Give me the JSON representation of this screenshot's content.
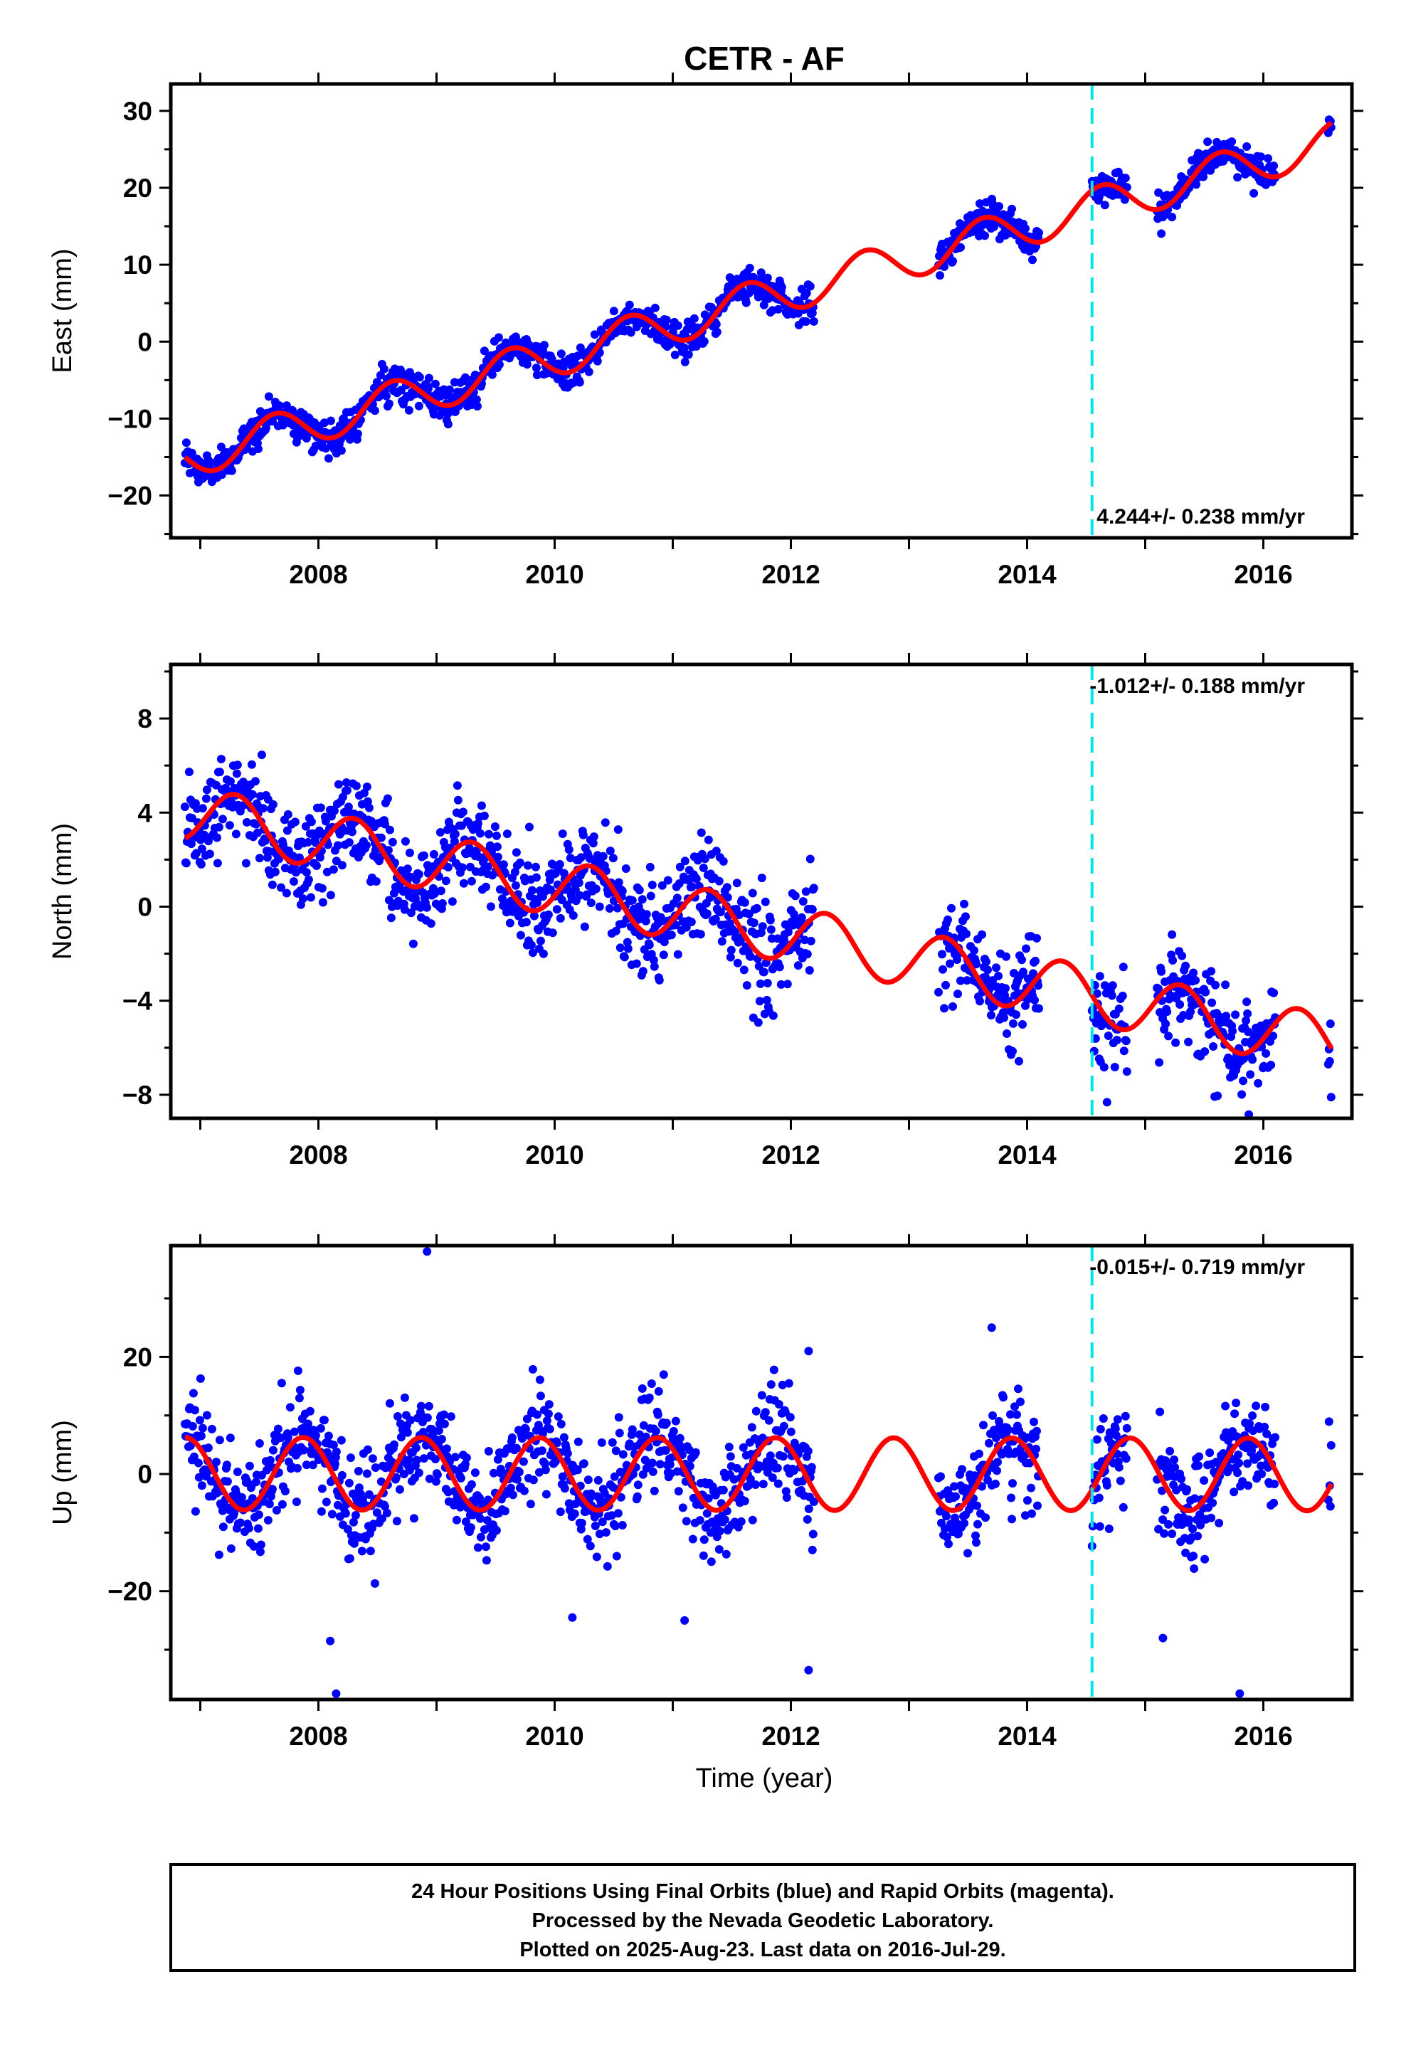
{
  "title": "CETR - AF",
  "xlabel": "Time (year)",
  "footer": {
    "line1": "24 Hour Positions Using Final Orbits (blue) and Rapid Orbits (magenta).",
    "line2": "Processed by the Nevada Geodetic Laboratory.",
    "line3": "Plotted on 2025-Aug-23. Last data on 2016-Jul-29."
  },
  "colors": {
    "points": "#0000ff",
    "model": "#ff0000",
    "marker": "#00e5e5",
    "frame": "#000000"
  },
  "chart_data": [
    {
      "type": "scatter",
      "ylabel": "East (mm)",
      "xlim": [
        2006.75,
        2016.75
      ],
      "ylim": [
        -25.5,
        33.5
      ],
      "xticks": [
        2008,
        2010,
        2012,
        2014,
        2016
      ],
      "yticks": [
        -20,
        -10,
        0,
        10,
        20,
        30
      ],
      "ytick_labels": [
        "−20",
        "−10",
        "0",
        "10",
        "20",
        "30"
      ],
      "rate_label": "4.244+/- 0.238 mm/yr",
      "rate_label_position": "bottom-right",
      "vertical_marker": 2014.55,
      "data_spans": [
        [
          2006.87,
          2012.2
        ],
        [
          2013.25,
          2014.1
        ],
        [
          2014.55,
          2014.85
        ],
        [
          2015.1,
          2016.1
        ],
        [
          2016.55,
          2016.58
        ]
      ],
      "model": {
        "intercept": 5.3,
        "rate": 4.244,
        "ref_year": 2011.7,
        "amplitude": 2.6,
        "phase_year": 2007.38
      },
      "scatter_sd": 1.1,
      "sample_points": [
        {
          "x": 2006.9,
          "y": -19.5
        },
        {
          "x": 2007.4,
          "y": -11.0
        },
        {
          "x": 2007.8,
          "y": -15.5
        },
        {
          "x": 2008.4,
          "y": -7.0
        },
        {
          "x": 2008.8,
          "y": -11.5
        },
        {
          "x": 2009.4,
          "y": -2.5
        },
        {
          "x": 2009.8,
          "y": -7.5
        },
        {
          "x": 2010.4,
          "y": 1.5
        },
        {
          "x": 2010.8,
          "y": -3.0
        },
        {
          "x": 2011.4,
          "y": 5.5
        },
        {
          "x": 2011.8,
          "y": 1.5
        },
        {
          "x": 2012.1,
          "y": 6.0
        },
        {
          "x": 2013.4,
          "y": 14.0
        },
        {
          "x": 2013.8,
          "y": 10.5
        },
        {
          "x": 2014.7,
          "y": 15.5
        },
        {
          "x": 2015.4,
          "y": 22.5
        },
        {
          "x": 2015.8,
          "y": 18.0
        },
        {
          "x": 2016.56,
          "y": 23.0
        }
      ]
    },
    {
      "type": "scatter",
      "ylabel": "North (mm)",
      "xlim": [
        2006.75,
        2016.75
      ],
      "ylim": [
        -9.0,
        10.3
      ],
      "xticks": [
        2008,
        2010,
        2012,
        2014,
        2016
      ],
      "yticks": [
        -8,
        -4,
        0,
        4,
        8
      ],
      "ytick_labels": [
        "−8",
        "−4",
        "0",
        "4",
        "8"
      ],
      "rate_label": "-1.012+/- 0.188 mm/yr",
      "rate_label_position": "top-right",
      "vertical_marker": 2014.55,
      "data_spans": [
        [
          2006.87,
          2012.2
        ],
        [
          2013.25,
          2014.1
        ],
        [
          2014.55,
          2014.85
        ],
        [
          2015.1,
          2016.1
        ],
        [
          2016.55,
          2016.58
        ]
      ],
      "model": {
        "intercept": 4.0,
        "rate": -1.012,
        "ref_year": 2006.87,
        "amplitude": 1.2,
        "phase_year": 2007.05
      },
      "scatter_sd": 1.05,
      "sample_points": [
        {
          "x": 2006.9,
          "y": 3.8
        },
        {
          "x": 2007.5,
          "y": 3.5
        },
        {
          "x": 2008.0,
          "y": 3.0
        },
        {
          "x": 2008.5,
          "y": 2.5
        },
        {
          "x": 2009.0,
          "y": 2.0
        },
        {
          "x": 2009.5,
          "y": 1.2
        },
        {
          "x": 2010.0,
          "y": 1.0
        },
        {
          "x": 2010.5,
          "y": 0.0
        },
        {
          "x": 2011.0,
          "y": -0.2
        },
        {
          "x": 2011.5,
          "y": -0.8
        },
        {
          "x": 2012.0,
          "y": -1.2
        },
        {
          "x": 2013.5,
          "y": -2.5
        },
        {
          "x": 2014.0,
          "y": -2.6
        },
        {
          "x": 2014.7,
          "y": -3.8
        },
        {
          "x": 2015.5,
          "y": -5.0
        },
        {
          "x": 2016.0,
          "y": -5.2
        },
        {
          "x": 2016.57,
          "y": -5.5
        }
      ]
    },
    {
      "type": "scatter",
      "ylabel": "Up (mm)",
      "xlim": [
        2006.75,
        2016.75
      ],
      "ylim": [
        -38.5,
        39.0
      ],
      "xticks": [
        2008,
        2010,
        2012,
        2014,
        2016
      ],
      "yticks": [
        -20,
        0,
        20
      ],
      "ytick_labels": [
        "−20",
        "0",
        "20"
      ],
      "rate_label": "-0.015+/- 0.719 mm/yr",
      "rate_label_position": "top-right",
      "vertical_marker": 2014.55,
      "data_spans": [
        [
          2006.87,
          2012.2
        ],
        [
          2013.25,
          2014.1
        ],
        [
          2014.55,
          2014.85
        ],
        [
          2015.1,
          2016.1
        ],
        [
          2016.55,
          2016.58
        ]
      ],
      "model": {
        "intercept": 0.0,
        "rate": -0.015,
        "ref_year": 2011.7,
        "amplitude": 6.2,
        "phase_year": 2007.62
      },
      "scatter_sd": 4.3,
      "sample_points": [
        {
          "x": 2006.9,
          "y": -1.0
        },
        {
          "x": 2007.2,
          "y": -6.0
        },
        {
          "x": 2007.6,
          "y": 6.0
        },
        {
          "x": 2008.1,
          "y": -6.0
        },
        {
          "x": 2008.6,
          "y": 6.0
        },
        {
          "x": 2009.1,
          "y": -6.0
        },
        {
          "x": 2009.6,
          "y": 6.0
        },
        {
          "x": 2010.1,
          "y": -6.0
        },
        {
          "x": 2010.6,
          "y": 6.0
        },
        {
          "x": 2011.1,
          "y": -6.0
        },
        {
          "x": 2011.6,
          "y": 6.0
        },
        {
          "x": 2012.1,
          "y": -6.0
        },
        {
          "x": 2013.6,
          "y": 6.0
        },
        {
          "x": 2014.6,
          "y": 4.0
        },
        {
          "x": 2015.2,
          "y": -9.0
        },
        {
          "x": 2015.6,
          "y": 3.5
        },
        {
          "x": 2016.1,
          "y": -9.0
        },
        {
          "x": 2016.57,
          "y": 2.0
        }
      ],
      "outliers": [
        {
          "x": 2008.92,
          "y": 38.0
        },
        {
          "x": 2008.1,
          "y": -28.5
        },
        {
          "x": 2008.15,
          "y": -37.5
        },
        {
          "x": 2012.15,
          "y": -33.5
        },
        {
          "x": 2015.15,
          "y": -28.0
        },
        {
          "x": 2015.8,
          "y": -37.5
        },
        {
          "x": 2012.15,
          "y": 21.0
        },
        {
          "x": 2013.7,
          "y": 25.0
        },
        {
          "x": 2011.1,
          "y": -25.0
        },
        {
          "x": 2010.15,
          "y": -24.5
        }
      ]
    }
  ]
}
